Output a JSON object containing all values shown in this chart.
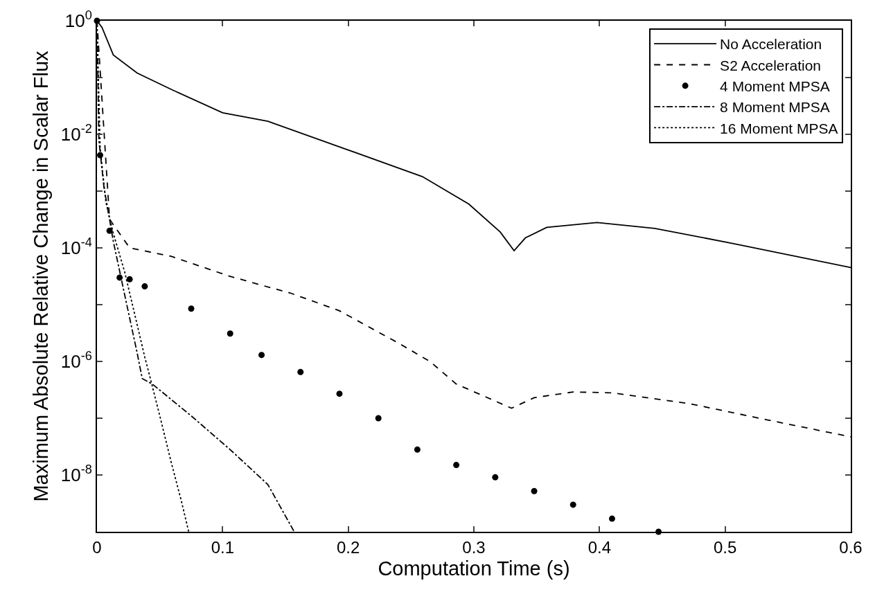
{
  "chart_data": {
    "type": "line",
    "xlabel": "Computation Time (s)",
    "ylabel": "Maximum Absolute Relative Change in Scalar Flux",
    "log": "y",
    "grid": false,
    "legend": "top right",
    "xlim": [
      0,
      0.6
    ],
    "xticks": [
      0,
      0.1,
      0.2,
      0.3,
      0.4,
      0.5,
      0.6
    ],
    "ylim": [
      1e-09,
      1
    ],
    "yticks": [
      {
        "value": 1,
        "label": "10$^{0}$"
      },
      {
        "value": 0.1,
        "label": null
      },
      {
        "value": 0.01,
        "label": "10$^{-2}$"
      },
      {
        "value": 0.001,
        "label": null
      },
      {
        "value": 0.0001,
        "label": "10$^{-4}$"
      },
      {
        "value": 1e-05,
        "label": null
      },
      {
        "value": 1e-06,
        "label": "10$^{-6}$"
      },
      {
        "value": 1e-07,
        "label": null
      },
      {
        "value": 1e-08,
        "label": "10$^{-8}$"
      }
    ],
    "series": [
      {
        "name": "No Acceleration",
        "color": "#000000",
        "line_style": "solid",
        "marker": "none",
        "x": [
          0,
          0.004,
          0.013,
          0.032,
          0.059,
          0.1,
          0.136,
          0.198,
          0.259,
          0.296,
          0.321,
          0.332,
          0.341,
          0.358,
          0.398,
          0.444,
          0.506,
          0.6
        ],
        "values": [
          1,
          0.76,
          0.25,
          0.12,
          0.062,
          0.024,
          0.017,
          0.0055,
          0.0018,
          0.00059,
          0.00019,
          8.9e-05,
          0.00015,
          0.00023,
          0.00028,
          0.00022,
          0.00012,
          4.5e-05
        ]
      },
      {
        "name": "S2 Acceleration",
        "color": "#000000",
        "line_style": "dashed",
        "marker": "none",
        "x": [
          0,
          0.01,
          0.026,
          0.059,
          0.105,
          0.131,
          0.154,
          0.193,
          0.24,
          0.265,
          0.286,
          0.33,
          0.348,
          0.379,
          0.41,
          0.472,
          0.534,
          0.6
        ],
        "values": [
          1,
          0.00032,
          0.0001,
          7.1e-05,
          3.2e-05,
          2.2e-05,
          1.6e-05,
          7.8e-06,
          2.1e-06,
          1e-06,
          4e-07,
          1.5e-07,
          2.3e-07,
          2.9e-07,
          2.8e-07,
          1.8e-07,
          9.3e-08,
          4.7e-08
        ]
      },
      {
        "name": "4 Moment MPSA",
        "type": "scatter",
        "color": "#000000",
        "marker": "circle",
        "x": [
          0,
          0.0025,
          0.01,
          0.018,
          0.026,
          0.038,
          0.075,
          0.106,
          0.131,
          0.162,
          0.193,
          0.224,
          0.255,
          0.286,
          0.317,
          0.348,
          0.379,
          0.41,
          0.447
        ],
        "values": [
          1,
          0.0043,
          0.0002,
          3e-05,
          2.8e-05,
          2.1e-05,
          8.5e-06,
          3.1e-06,
          1.3e-06,
          6.5e-07,
          2.7e-07,
          1e-07,
          2.8e-08,
          1.5e-08,
          9.1e-09,
          5.2e-09,
          3e-09,
          1.7e-09,
          1e-09
        ]
      },
      {
        "name": "8 Moment MPSA",
        "color": "#000000",
        "line_style": "dashdot",
        "marker": "none",
        "x": [
          0,
          0.0015,
          0.0055,
          0.013,
          0.022,
          0.032,
          0.036,
          0.044,
          0.075,
          0.106,
          0.136,
          0.157
        ],
        "values": [
          1,
          0.0079,
          0.0012,
          0.00013,
          1.5e-05,
          1.4e-06,
          5e-07,
          4e-07,
          1.1e-07,
          2.8e-08,
          6.8e-09,
          1e-09
        ]
      },
      {
        "name": "16 Moment MPSA",
        "color": "#000000",
        "line_style": "dotted",
        "marker": "none",
        "x": [
          0,
          0.0025,
          0.007,
          0.013,
          0.022,
          0.03,
          0.038,
          0.042,
          0.05,
          0.059,
          0.067,
          0.073
        ],
        "values": [
          1,
          0.0058,
          0.00065,
          0.00018,
          3.8e-05,
          6.8e-06,
          1.2e-06,
          5.5e-07,
          1.1e-07,
          1.7e-08,
          3.6e-09,
          1e-09
        ]
      }
    ]
  }
}
